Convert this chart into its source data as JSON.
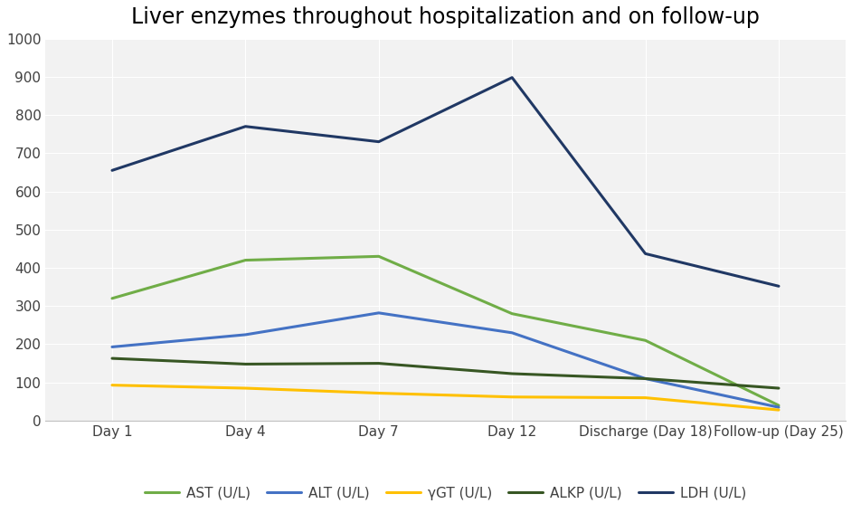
{
  "title": "Liver enzymes throughout hospitalization and on follow-up",
  "x_labels": [
    "Day 1",
    "Day 4",
    "Day 7",
    "Day 12",
    "Discharge (Day 18)",
    "Follow-up (Day 25)"
  ],
  "x_positions": [
    0,
    1,
    2,
    3,
    4,
    5
  ],
  "series": [
    {
      "name": "AST (U/L)",
      "values": [
        320,
        420,
        430,
        280,
        210,
        40
      ],
      "color": "#70ad47",
      "linewidth": 2.2
    },
    {
      "name": "ALT (U/L)",
      "values": [
        193,
        225,
        282,
        230,
        110,
        35
      ],
      "color": "#4472c4",
      "linewidth": 2.2
    },
    {
      "name": "γGT (U/L)",
      "values": [
        93,
        85,
        72,
        62,
        60,
        28
      ],
      "color": "#ffc000",
      "linewidth": 2.2
    },
    {
      "name": "ALKP (U/L)",
      "values": [
        163,
        148,
        150,
        123,
        110,
        85
      ],
      "color": "#375623",
      "linewidth": 2.2
    },
    {
      "name": "LDH (U/L)",
      "values": [
        655,
        770,
        730,
        898,
        437,
        352
      ],
      "color": "#203864",
      "linewidth": 2.2
    }
  ],
  "ylim": [
    0,
    1000
  ],
  "yticks": [
    0,
    100,
    200,
    300,
    400,
    500,
    600,
    700,
    800,
    900,
    1000
  ],
  "plot_bg_color": "#f2f2f2",
  "fig_bg_color": "#ffffff",
  "grid_color": "#ffffff",
  "title_fontsize": 17,
  "tick_fontsize": 11,
  "legend_fontsize": 11
}
